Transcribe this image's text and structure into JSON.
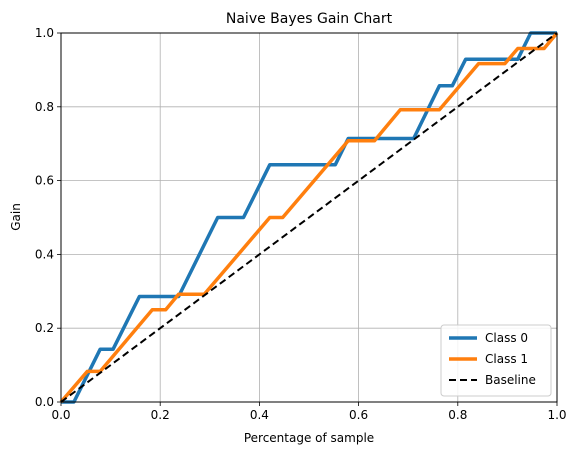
{
  "chart_data": {
    "type": "line",
    "title": "Naive Bayes Gain Chart",
    "xlabel": "Percentage of sample",
    "ylabel": "Gain",
    "xlim": [
      0,
      1
    ],
    "ylim": [
      0,
      1
    ],
    "x_ticks": [
      "0.0",
      "0.2",
      "0.4",
      "0.6",
      "0.8",
      "1.0"
    ],
    "y_ticks": [
      "0.0",
      "0.2",
      "0.4",
      "0.6",
      "0.8",
      "1.0"
    ],
    "grid": true,
    "legend_position": "bottom-right",
    "series": [
      {
        "name": "Class 0",
        "color": "#1f77b4",
        "style": "solid",
        "points": [
          [
            0.0,
            0.0
          ],
          [
            0.026,
            0.0
          ],
          [
            0.079,
            0.143
          ],
          [
            0.105,
            0.143
          ],
          [
            0.158,
            0.286
          ],
          [
            0.237,
            0.286
          ],
          [
            0.316,
            0.5
          ],
          [
            0.368,
            0.5
          ],
          [
            0.421,
            0.643
          ],
          [
            0.553,
            0.643
          ],
          [
            0.579,
            0.714
          ],
          [
            0.711,
            0.714
          ],
          [
            0.763,
            0.857
          ],
          [
            0.789,
            0.857
          ],
          [
            0.816,
            0.929
          ],
          [
            0.921,
            0.929
          ],
          [
            0.947,
            1.0
          ],
          [
            1.0,
            1.0
          ]
        ]
      },
      {
        "name": "Class 1",
        "color": "#ff7f0e",
        "style": "solid",
        "points": [
          [
            0.0,
            0.0
          ],
          [
            0.053,
            0.083
          ],
          [
            0.079,
            0.083
          ],
          [
            0.184,
            0.25
          ],
          [
            0.211,
            0.25
          ],
          [
            0.237,
            0.292
          ],
          [
            0.289,
            0.292
          ],
          [
            0.421,
            0.5
          ],
          [
            0.447,
            0.5
          ],
          [
            0.579,
            0.708
          ],
          [
            0.632,
            0.708
          ],
          [
            0.684,
            0.792
          ],
          [
            0.763,
            0.792
          ],
          [
            0.842,
            0.917
          ],
          [
            0.895,
            0.917
          ],
          [
            0.921,
            0.958
          ],
          [
            0.974,
            0.958
          ],
          [
            1.0,
            1.0
          ]
        ]
      },
      {
        "name": "Baseline",
        "color": "#000000",
        "style": "dashed",
        "points": [
          [
            0.0,
            0.0
          ],
          [
            1.0,
            1.0
          ]
        ]
      }
    ]
  }
}
